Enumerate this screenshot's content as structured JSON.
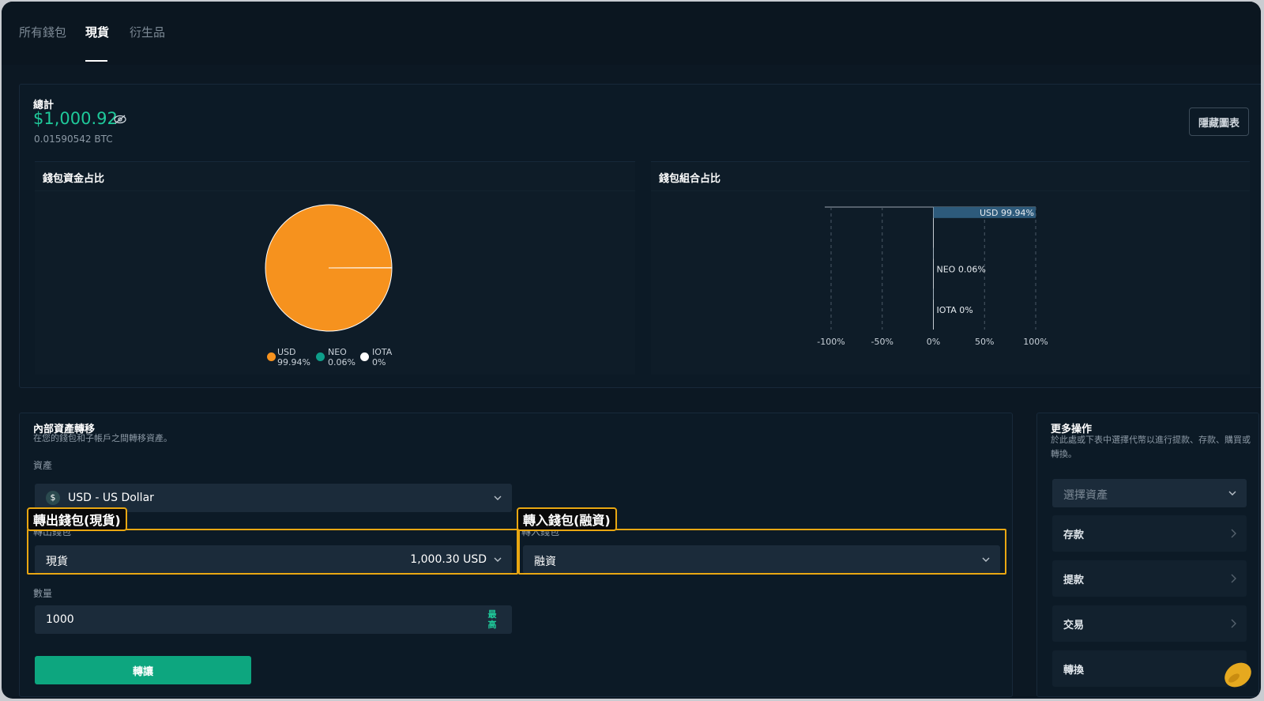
{
  "tabs": [
    {
      "label": "所有錢包"
    },
    {
      "label": "現貨",
      "active": true
    },
    {
      "label": "衍生品"
    }
  ],
  "summary": {
    "total_label": "總計",
    "total_value": "$1,000.92",
    "btc_value": "0.01590542 BTC",
    "hide_chart_label": "隱藏圖表"
  },
  "pie_chart": {
    "title": "錢包資金占比",
    "legend": [
      {
        "name": "USD",
        "pct": "99.94%",
        "color": "#f6921e"
      },
      {
        "name": "NEO",
        "pct": "0.06%",
        "color": "#0e9e8a"
      },
      {
        "name": "IOTA",
        "pct": "0%",
        "color": "#ffffff"
      }
    ]
  },
  "bar_chart": {
    "title": "錢包組合占比",
    "bar_label": "USD 99.94%",
    "labels": [
      "NEO 0.06%",
      "IOTA 0%"
    ],
    "ticks": [
      "-100%",
      "-50%",
      "0%",
      "50%",
      "100%"
    ]
  },
  "chart_data": [
    {
      "type": "pie",
      "title": "錢包資金占比",
      "categories": [
        "USD",
        "NEO",
        "IOTA"
      ],
      "values": [
        99.94,
        0.06,
        0
      ],
      "colors": [
        "#f6921e",
        "#0e9e8a",
        "#ffffff"
      ],
      "legend": "bottom"
    },
    {
      "type": "bar",
      "title": "錢包組合占比",
      "orientation": "horizontal",
      "categories": [
        "USD",
        "NEO",
        "IOTA"
      ],
      "values": [
        99.94,
        0.06,
        0
      ],
      "xlim": [
        -100,
        100
      ],
      "xticks": [
        "-100%",
        "-50%",
        "0%",
        "50%",
        "100%"
      ],
      "grid": true,
      "color": "#2d5a7b"
    }
  ],
  "transfer": {
    "title": "內部資產轉移",
    "subtitle": "在您的錢包和子帳戶之間轉移資產。",
    "asset_label": "資產",
    "asset_icon": "$",
    "asset_value": "USD - US Dollar",
    "from_label": "轉出錢包",
    "from_value": "現貨",
    "from_balance": "1,000.30 USD",
    "to_label": "轉入錢包",
    "to_value": "融資",
    "qty_label": "數量",
    "qty_value": "1000",
    "max_label": "最高",
    "submit_label": "轉讓"
  },
  "annotations": {
    "from_tag": "轉出錢包(現貨)",
    "to_tag": "轉入錢包(融資)",
    "color": "#e9a712"
  },
  "more": {
    "title": "更多操作",
    "subtitle": "於此處或下表中選擇代幣以進行提款、存款、購買或轉換。",
    "select_placeholder": "選擇資產",
    "actions": [
      {
        "label": "存款"
      },
      {
        "label": "提款"
      },
      {
        "label": "交易"
      },
      {
        "label": "轉換"
      }
    ]
  },
  "colors": {
    "accent": "#1fc99a",
    "button": "#0da67f",
    "background": "#0c1823",
    "pie_usd": "#f6921e"
  }
}
